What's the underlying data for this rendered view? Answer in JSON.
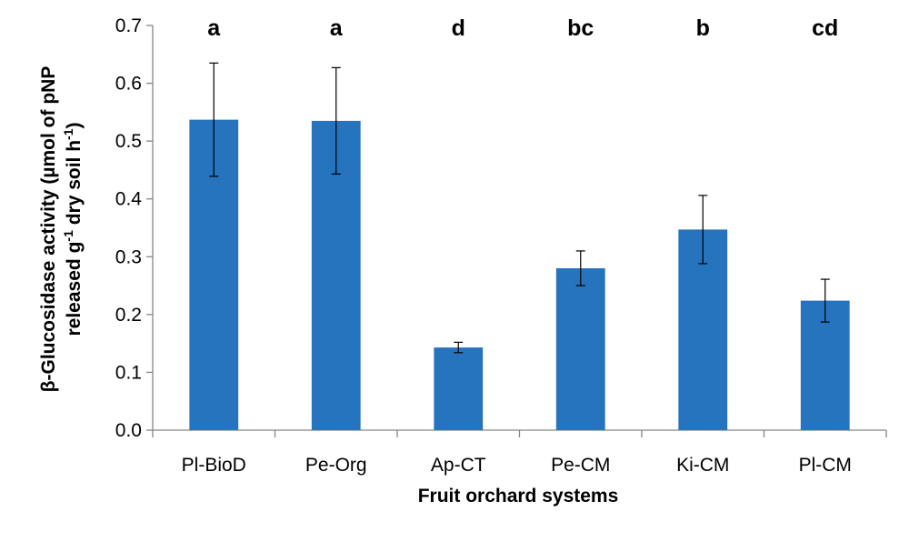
{
  "chart_data": {
    "type": "bar",
    "title": "",
    "xlabel": "Fruit orchard systems",
    "ylabel_line1": "β-Glucosidase activity (µmol of pNP",
    "ylabel_line2_pre": "released g",
    "ylabel_line2_sup1": "-1",
    "ylabel_line2_mid": " dry soil h",
    "ylabel_line2_sup2": "-1",
    "ylabel_line2_post": ")",
    "ylim": [
      0,
      0.7
    ],
    "yticks": [
      "0.0",
      "0.1",
      "0.2",
      "0.3",
      "0.4",
      "0.5",
      "0.6",
      "0.7"
    ],
    "grid": false,
    "legend": "none",
    "bar_color": "#2673BE",
    "categories": [
      "Pl-BioD",
      "Pe-Org",
      "Ap-CT",
      "Pe-CM",
      "Ki-CM",
      "Pl-CM"
    ],
    "values": [
      0.537,
      0.535,
      0.143,
      0.28,
      0.347,
      0.224
    ],
    "error": [
      0.098,
      0.092,
      0.009,
      0.03,
      0.059,
      0.037
    ],
    "significance": [
      "a",
      "a",
      "d",
      "bc",
      "b",
      "cd"
    ]
  }
}
